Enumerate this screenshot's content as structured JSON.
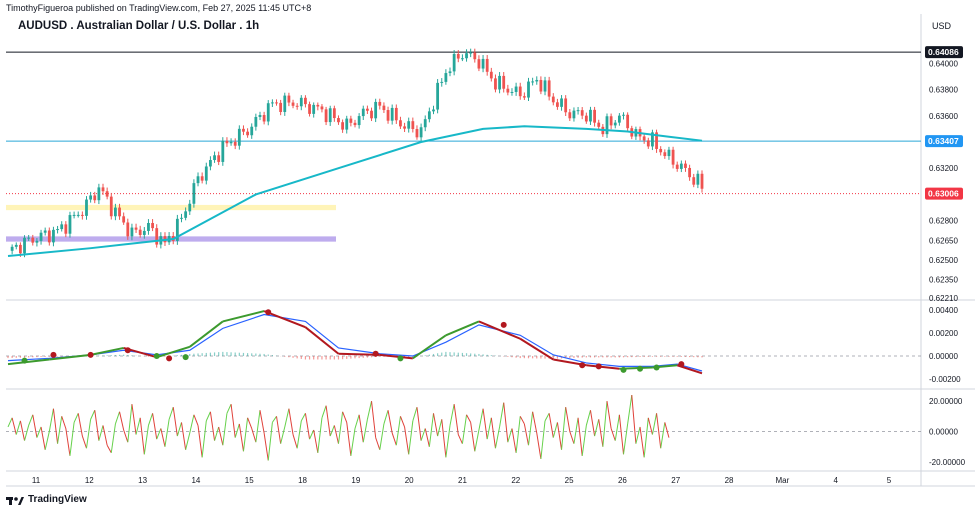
{
  "header": {
    "published": "TimothyFigueroa published on TradingView.com, Feb 27, 2025 11:45 UTC+8",
    "title": "AUDUSD . Australian Dollar / U.S. Dollar . 1h",
    "currency": "USD"
  },
  "footer": {
    "brand": "TradingView"
  },
  "colors": {
    "up": "#26a69a",
    "down": "#ef5350",
    "ma": "#17b8c8",
    "hline_blue": "#2aa7d6",
    "last_price": "#f23645",
    "zone_yellow": "#fff3b0",
    "zone_purple": "#b7a3ec",
    "macd_fast_up": "#3c9a2e",
    "macd_fast_down": "#b2181f",
    "macd_slow": "#2962ff",
    "osc_up": "#66d14b",
    "osc_down": "#e0413a"
  },
  "chart_data": [
    {
      "type": "candlestick",
      "title": "AUDUSD . Australian Dollar / U.S. Dollar . 1h",
      "x_labels": [
        "11",
        "12",
        "13",
        "14",
        "15",
        "18",
        "19",
        "20",
        "21",
        "22",
        "25",
        "26",
        "27",
        "28",
        "Mar",
        "4",
        "5"
      ],
      "y_ticks": [
        "0.64000",
        "0.63800",
        "0.63600",
        "0.63200",
        "0.62800",
        "0.62650",
        "0.62500",
        "0.62350",
        "0.62210"
      ],
      "ylim": [
        0.6221,
        0.6414
      ],
      "price_tags": [
        {
          "label": "0.64086",
          "value": 0.64086,
          "style": "dark"
        },
        {
          "label": "0.63407",
          "value": 0.63407,
          "style": "blue"
        },
        {
          "label": "0.63006",
          "value": 0.63006,
          "style": "red"
        }
      ],
      "horizontal_lines": [
        {
          "value": 0.64086,
          "style": "solid-dark"
        },
        {
          "value": 0.63407,
          "style": "solid-blue"
        },
        {
          "value": 0.63006,
          "style": "dotted-red"
        }
      ],
      "zones": [
        {
          "from": 0.6288,
          "to": 0.6292,
          "color": "yellow",
          "x_end": "18"
        },
        {
          "from": 0.6264,
          "to": 0.6268,
          "color": "purple",
          "x_end": "18"
        }
      ],
      "close_path": [
        [
          0,
          0.6257
        ],
        [
          6,
          0.6266
        ],
        [
          12,
          0.6272
        ],
        [
          18,
          0.6288
        ],
        [
          22,
          0.6305
        ],
        [
          26,
          0.6286
        ],
        [
          30,
          0.627
        ],
        [
          34,
          0.6275
        ],
        [
          38,
          0.6262
        ],
        [
          42,
          0.6281
        ],
        [
          46,
          0.6312
        ],
        [
          52,
          0.6336
        ],
        [
          58,
          0.6349
        ],
        [
          64,
          0.6369
        ],
        [
          70,
          0.637
        ],
        [
          76,
          0.6364
        ],
        [
          82,
          0.6352
        ],
        [
          86,
          0.6362
        ],
        [
          90,
          0.6367
        ],
        [
          96,
          0.6352
        ],
        [
          100,
          0.6348
        ],
        [
          106,
          0.6394
        ],
        [
          110,
          0.6408
        ],
        [
          114,
          0.6402
        ],
        [
          118,
          0.6385
        ],
        [
          124,
          0.6376
        ],
        [
          128,
          0.6388
        ],
        [
          132,
          0.6372
        ],
        [
          136,
          0.6362
        ],
        [
          140,
          0.6361
        ],
        [
          144,
          0.635
        ],
        [
          148,
          0.636
        ],
        [
          152,
          0.6345
        ],
        [
          156,
          0.634
        ],
        [
          160,
          0.6328
        ],
        [
          164,
          0.6318
        ],
        [
          168,
          0.6306
        ]
      ],
      "moving_average": [
        [
          0,
          0.6253
        ],
        [
          20,
          0.6259
        ],
        [
          40,
          0.6266
        ],
        [
          60,
          0.63
        ],
        [
          80,
          0.632
        ],
        [
          100,
          0.634
        ],
        [
          115,
          0.635
        ],
        [
          125,
          0.6352
        ],
        [
          140,
          0.635
        ],
        [
          150,
          0.6348
        ],
        [
          160,
          0.6344
        ],
        [
          168,
          0.6341
        ]
      ]
    },
    {
      "type": "line",
      "name": "oscillator-1",
      "y_ticks": [
        "0.00400",
        "0.00200",
        "0.00000",
        "-0.00200"
      ],
      "ylim": [
        -0.0026,
        0.0046
      ],
      "fast": [
        [
          0,
          -0.0007
        ],
        [
          10,
          -0.0003
        ],
        [
          20,
          0.0001
        ],
        [
          28,
          0.0007
        ],
        [
          36,
          -0.0001
        ],
        [
          44,
          0.0008
        ],
        [
          52,
          0.003
        ],
        [
          62,
          0.0039
        ],
        [
          72,
          0.0025
        ],
        [
          80,
          0.0002
        ],
        [
          90,
          0.0001
        ],
        [
          98,
          -0.0002
        ],
        [
          106,
          0.0018
        ],
        [
          114,
          0.003
        ],
        [
          124,
          0.0015
        ],
        [
          132,
          -0.0003
        ],
        [
          140,
          -0.0008
        ],
        [
          148,
          -0.0011
        ],
        [
          156,
          -0.001
        ],
        [
          162,
          -0.0008
        ],
        [
          168,
          -0.0015
        ]
      ],
      "slow": [
        [
          0,
          -0.0004
        ],
        [
          10,
          -0.0002
        ],
        [
          20,
          0.0001
        ],
        [
          28,
          0.0005
        ],
        [
          36,
          0.0001
        ],
        [
          44,
          0.0005
        ],
        [
          52,
          0.0024
        ],
        [
          62,
          0.0036
        ],
        [
          72,
          0.003
        ],
        [
          80,
          0.0007
        ],
        [
          90,
          0.0002
        ],
        [
          98,
          0.0
        ],
        [
          106,
          0.0012
        ],
        [
          114,
          0.0027
        ],
        [
          124,
          0.0018
        ],
        [
          132,
          0.0001
        ],
        [
          140,
          -0.0006
        ],
        [
          148,
          -0.0009
        ],
        [
          156,
          -0.0009
        ],
        [
          162,
          -0.0007
        ],
        [
          168,
          -0.0013
        ]
      ],
      "signals": [
        {
          "x": 4,
          "y": -0.0004,
          "dir": "up"
        },
        {
          "x": 11,
          "y": 0.0001,
          "dir": "down"
        },
        {
          "x": 20,
          "y": 0.0001,
          "dir": "down"
        },
        {
          "x": 29,
          "y": 0.0005,
          "dir": "down"
        },
        {
          "x": 36,
          "y": 0.0,
          "dir": "up"
        },
        {
          "x": 39,
          "y": -0.0002,
          "dir": "down"
        },
        {
          "x": 43,
          "y": -0.0001,
          "dir": "up"
        },
        {
          "x": 63,
          "y": 0.0038,
          "dir": "down"
        },
        {
          "x": 89,
          "y": 0.0002,
          "dir": "down"
        },
        {
          "x": 95,
          "y": -0.0002,
          "dir": "up"
        },
        {
          "x": 120,
          "y": 0.0027,
          "dir": "down"
        },
        {
          "x": 139,
          "y": -0.0008,
          "dir": "down"
        },
        {
          "x": 143,
          "y": -0.0009,
          "dir": "down"
        },
        {
          "x": 149,
          "y": -0.0012,
          "dir": "up"
        },
        {
          "x": 153,
          "y": -0.0011,
          "dir": "up"
        },
        {
          "x": 157,
          "y": -0.001,
          "dir": "up"
        },
        {
          "x": 163,
          "y": -0.0007,
          "dir": "down"
        }
      ]
    },
    {
      "type": "line",
      "name": "oscillator-2",
      "y_ticks": [
        "20.00000",
        "0.00000",
        "-20.00000"
      ],
      "ylim": [
        -24,
        26
      ],
      "values": [
        3,
        9,
        -2,
        7,
        -6,
        4,
        11,
        -4,
        3,
        -12,
        0,
        15,
        -8,
        10,
        2,
        -16,
        6,
        12,
        -3,
        -11,
        8,
        14,
        -6,
        4,
        -9,
        -14,
        5,
        13,
        1,
        -7,
        18,
        -2,
        9,
        -15,
        4,
        12,
        -5,
        2,
        -10,
        8,
        16,
        -3,
        6,
        -12,
        -1,
        11,
        4,
        -17,
        7,
        13,
        -6,
        3,
        -9,
        12,
        18,
        -4,
        5,
        -13,
        9,
        2,
        -7,
        14,
        -1,
        -19,
        6,
        10,
        -8,
        3,
        15,
        -2,
        -11,
        7,
        12,
        -5,
        1,
        -14,
        9,
        17,
        -3,
        4,
        -8,
        13,
        6,
        -16,
        2,
        11,
        -7,
        8,
        20,
        -4,
        -12,
        5,
        14,
        -1,
        -9,
        10,
        3,
        -15,
        7,
        16,
        -6,
        2,
        -10,
        12,
        -3,
        8,
        -17,
        4,
        18,
        -2,
        -8,
        11,
        6,
        -13,
        1,
        15,
        -5,
        9,
        -11,
        3,
        19,
        -7,
        2,
        -14,
        10,
        5,
        -9,
        13,
        -1,
        -18,
        7,
        12,
        -4,
        6,
        -12,
        16,
        0,
        -8,
        9,
        -16,
        4,
        14,
        -3,
        8,
        -10,
        20,
        2,
        -6,
        11,
        -15,
        5,
        24,
        -8,
        3,
        -17,
        9,
        -2,
        12,
        -11,
        6,
        -4
      ]
    }
  ]
}
